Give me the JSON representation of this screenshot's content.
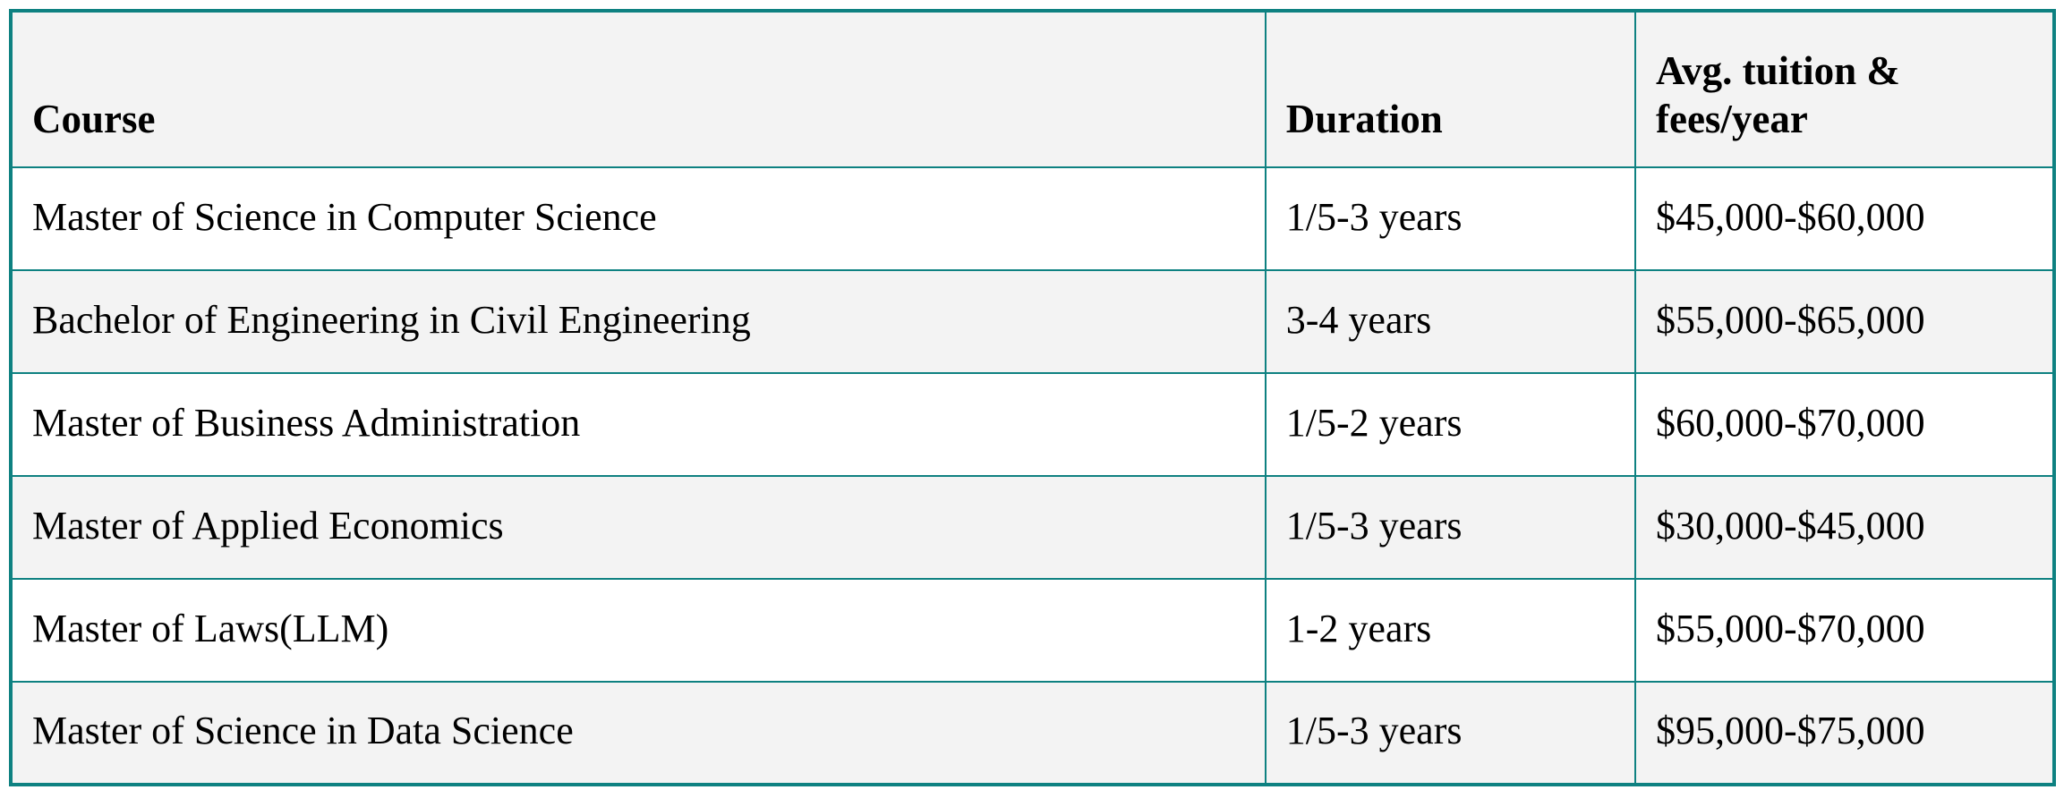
{
  "colors": {
    "border_teal": "#0e8181",
    "header_bg": "#f3f3f3",
    "row_alt_bg": "#f3f3f3",
    "row_bg": "#ffffff",
    "text": "#000000",
    "page_bg": "#ffffff"
  },
  "table": {
    "columns": [
      {
        "key": "course",
        "label": "Course"
      },
      {
        "key": "duration",
        "label": "Duration"
      },
      {
        "key": "tuition",
        "label": "Avg. tuition & fees/year"
      }
    ],
    "rows": [
      {
        "course": "Master of Science in Computer Science",
        "duration": "1/5-3 years",
        "tuition": "$45,000-$60,000"
      },
      {
        "course": "Bachelor of Engineering in Civil Engineering",
        "duration": "3-4 years",
        "tuition": "$55,000-$65,000"
      },
      {
        "course": "Master of Business Administration",
        "duration": "1/5-2 years",
        "tuition": "$60,000-$70,000"
      },
      {
        "course": "Master of Applied Economics",
        "duration": "1/5-3 years",
        "tuition": "$30,000-$45,000"
      },
      {
        "course": "Master of Laws(LLM)",
        "duration": "1-2 years",
        "tuition": "$55,000-$70,000"
      },
      {
        "course": "Master of Science in Data Science",
        "duration": "1/5-3 years",
        "tuition": "$95,000-$75,000"
      }
    ]
  }
}
